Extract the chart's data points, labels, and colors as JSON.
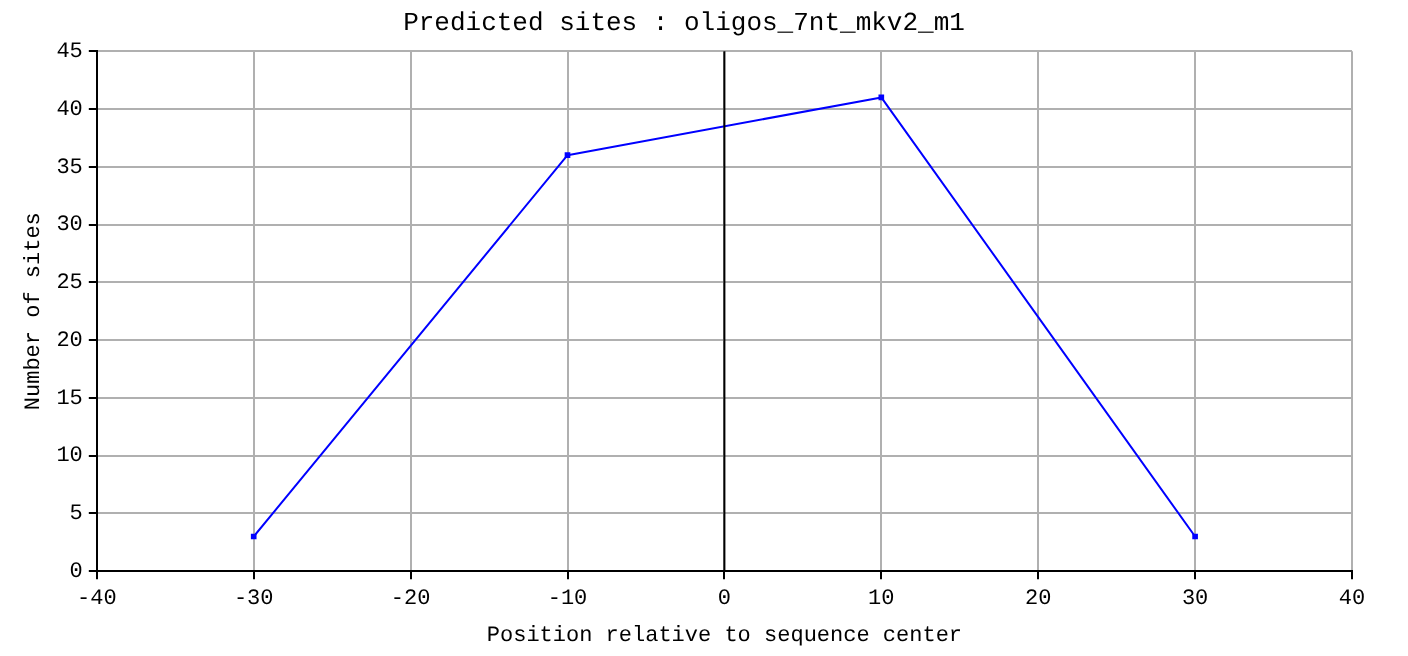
{
  "chart_data": {
    "type": "line",
    "title": "Predicted sites : oligos_7nt_mkv2_m1",
    "xlabel": "Position relative to sequence center",
    "ylabel": "Number of sites",
    "x": [
      -30,
      -10,
      10,
      30
    ],
    "series": [
      {
        "color": "#0000ff",
        "values": [
          3,
          36,
          41,
          3
        ]
      }
    ],
    "xlim": [
      -40,
      40
    ],
    "xticks": [
      -40,
      -30,
      -20,
      -10,
      0,
      10,
      20,
      30,
      40
    ],
    "ylim": [
      0,
      45
    ],
    "yticks": [
      0,
      5,
      10,
      15,
      20,
      25,
      30,
      35,
      40,
      45
    ],
    "grid": true,
    "marker": "square",
    "line_style": "solid",
    "legend": false,
    "ref_lines": [
      {
        "axis": "x",
        "value": 0,
        "color": "#000000"
      }
    ]
  }
}
